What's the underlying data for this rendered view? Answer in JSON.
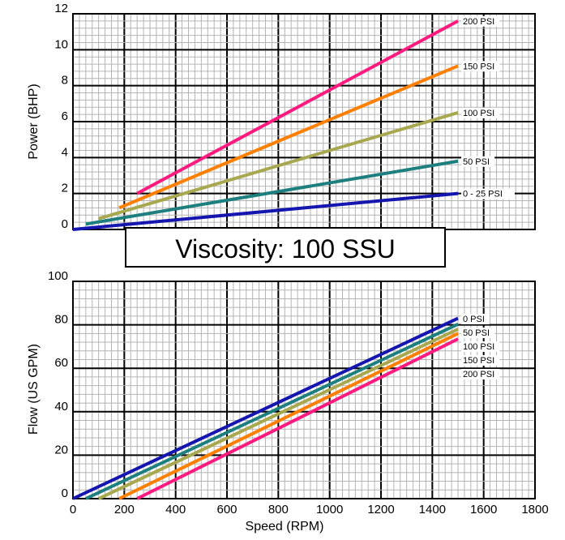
{
  "banner": {
    "text": "Viscosity: 100 SSU"
  },
  "chart_data": [
    {
      "type": "line",
      "title": "",
      "xlabel": "",
      "ylabel": "Power (BHP)",
      "xlim": [
        0,
        1800
      ],
      "ylim": [
        0,
        12
      ],
      "yticks": [
        "0",
        "2",
        "4",
        "6",
        "8",
        "10",
        "12"
      ],
      "grid": true,
      "series": [
        {
          "name": "0 - 25 PSI",
          "color": "#1515b0",
          "x": [
            0,
            1500
          ],
          "y": [
            0,
            2.0
          ]
        },
        {
          "name": "50 PSI",
          "color": "#1e7f7f",
          "x": [
            50,
            1500
          ],
          "y": [
            0.3,
            3.8
          ]
        },
        {
          "name": "100 PSI",
          "color": "#a8a850",
          "x": [
            100,
            1500
          ],
          "y": [
            0.6,
            6.5
          ]
        },
        {
          "name": "150 PSI",
          "color": "#ff7f00",
          "x": [
            180,
            1500
          ],
          "y": [
            1.2,
            9.1
          ]
        },
        {
          "name": "200 PSI",
          "color": "#ff1a80",
          "x": [
            250,
            1500
          ],
          "y": [
            2.0,
            11.6
          ]
        }
      ]
    },
    {
      "type": "line",
      "title": "",
      "xlabel": "Speed (RPM)",
      "ylabel": "Flow (US GPM)",
      "xlim": [
        0,
        1800
      ],
      "ylim": [
        0,
        100
      ],
      "xticks": [
        "0",
        "200",
        "400",
        "600",
        "800",
        "1000",
        "1200",
        "1400",
        "1600",
        "1800"
      ],
      "yticks": [
        "0",
        "20",
        "40",
        "60",
        "80",
        "100"
      ],
      "grid": true,
      "series": [
        {
          "name": "0 PSI",
          "color": "#1515b0",
          "x": [
            0,
            1500
          ],
          "y": [
            0,
            83
          ]
        },
        {
          "name": "50 PSI",
          "color": "#1e7f7f",
          "x": [
            50,
            1500
          ],
          "y": [
            0,
            80.3
          ]
        },
        {
          "name": "100 PSI",
          "color": "#a8a850",
          "x": [
            100,
            1500
          ],
          "y": [
            0,
            78
          ]
        },
        {
          "name": "150 PSI",
          "color": "#ff7f00",
          "x": [
            180,
            1500
          ],
          "y": [
            0,
            76
          ]
        },
        {
          "name": "200 PSI",
          "color": "#ff1a80",
          "x": [
            250,
            1500
          ],
          "y": [
            0,
            73.5
          ]
        }
      ]
    }
  ]
}
